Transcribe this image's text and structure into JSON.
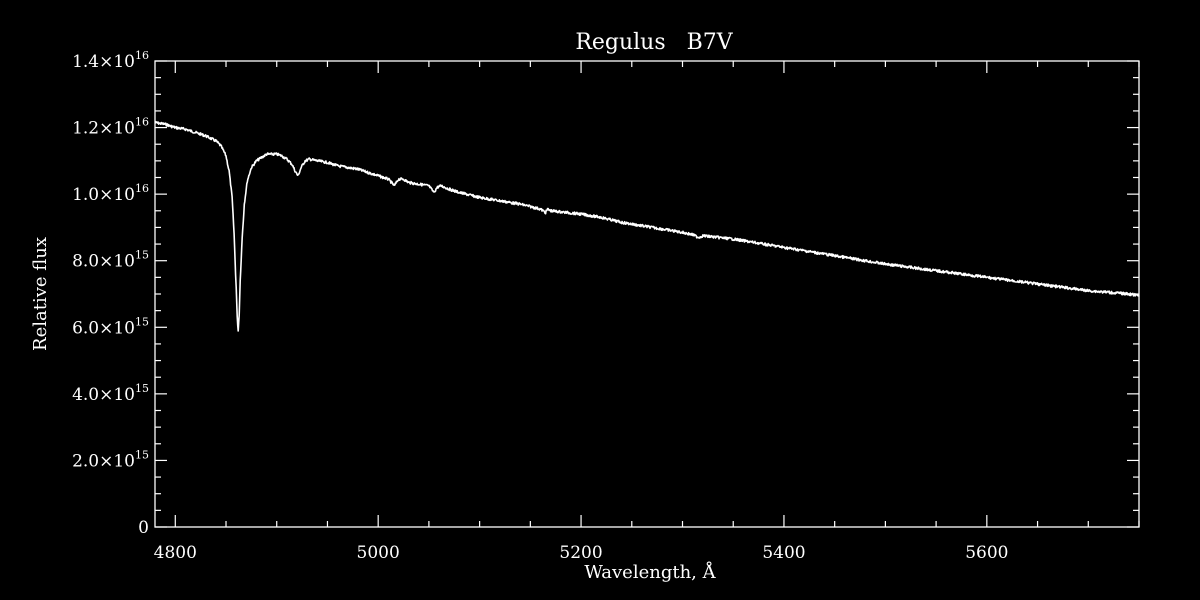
{
  "chart_data": {
    "type": "line",
    "title": "Regulus   B7V",
    "xlabel": "Wavelength, Å",
    "ylabel": "Relative flux",
    "xlim": [
      4780,
      5750
    ],
    "ylim": [
      0,
      1.4e+16
    ],
    "grid": false,
    "colors": {
      "background": "#000000",
      "foreground": "#ffffff"
    },
    "x_ticks": [
      {
        "value": 4800,
        "label": "4800"
      },
      {
        "value": 5000,
        "label": "5000"
      },
      {
        "value": 5200,
        "label": "5200"
      },
      {
        "value": 5400,
        "label": "5400"
      },
      {
        "value": 5600,
        "label": "5600"
      }
    ],
    "y_ticks": [
      {
        "value": 0,
        "mantissa": "0",
        "exp": ""
      },
      {
        "value": 2000000000000000.0,
        "mantissa": "2.0×10",
        "exp": "15"
      },
      {
        "value": 4000000000000000.0,
        "mantissa": "4.0×10",
        "exp": "15"
      },
      {
        "value": 6000000000000000.0,
        "mantissa": "6.0×10",
        "exp": "15"
      },
      {
        "value": 8000000000000000.0,
        "mantissa": "8.0×10",
        "exp": "15"
      },
      {
        "value": 1e+16,
        "mantissa": "1.0×10",
        "exp": "16"
      },
      {
        "value": 1.2e+16,
        "mantissa": "1.2×10",
        "exp": "16"
      },
      {
        "value": 1.4e+16,
        "mantissa": "1.4×10",
        "exp": "16"
      }
    ],
    "series": [
      {
        "x": [
          4780,
          4790,
          4800,
          4810,
          4820,
          4830,
          4840,
          4845,
          4850,
          4853,
          4856,
          4858,
          4860,
          4861,
          4862,
          4863,
          4864,
          4866,
          4868,
          4871,
          4875,
          4880,
          4885,
          4890,
          4895,
          4900,
          4905,
          4910,
          4915,
          4918,
          4921,
          4924,
          4928,
          4932,
          4940,
          4950,
          4960,
          4970,
          4980,
          4990,
          5000,
          5010,
          5016,
          5020,
          5025,
          5030,
          5040,
          5050,
          5055,
          5058,
          5062,
          5070,
          5080,
          5100,
          5120,
          5140,
          5160,
          5165,
          5167,
          5170,
          5200,
          5220,
          5240,
          5260,
          5280,
          5300,
          5310,
          5316,
          5320,
          5350,
          5400,
          5450,
          5500,
          5550,
          5600,
          5650,
          5700,
          5740,
          5750
        ],
        "y": [
          1.215e+16,
          1.21e+16,
          1.2e+16,
          1.195e+16,
          1.185e+16,
          1.175e+16,
          1.16e+16,
          1.145e+16,
          1.115e+16,
          1.07e+16,
          9900000000000000.0,
          8800000000000000.0,
          7200000000000000.0,
          6300000000000000.0,
          5900000000000000.0,
          6400000000000000.0,
          7400000000000000.0,
          8700000000000000.0,
          9700000000000000.0,
          1.04e+16,
          1.08e+16,
          1.1e+16,
          1.11e+16,
          1.12e+16,
          1.12e+16,
          1.12e+16,
          1.115e+16,
          1.105e+16,
          1.09e+16,
          1.07e+16,
          1.055e+16,
          1.08e+16,
          1.1e+16,
          1.105e+16,
          1.1e+16,
          1.095e+16,
          1.085e+16,
          1.08e+16,
          1.075e+16,
          1.065e+16,
          1.055e+16,
          1.045e+16,
          1.025e+16,
          1.045e+16,
          1.045e+16,
          1.035e+16,
          1.03e+16,
          1.025e+16,
          1.005e+16,
          1.02e+16,
          1.025e+16,
          1.015e+16,
          1.005e+16,
          9900000000000000.0,
          9800000000000000.0,
          9700000000000000.0,
          9550000000000000.0,
          9450000000000000.0,
          9550000000000000.0,
          9500000000000000.0,
          9400000000000000.0,
          9300000000000000.0,
          9150000000000000.0,
          9050000000000000.0,
          8950000000000000.0,
          8850000000000000.0,
          8780000000000000.0,
          8700000000000000.0,
          8750000000000000.0,
          8650000000000000.0,
          8400000000000000.0,
          8150000000000000.0,
          7900000000000000.0,
          7700000000000000.0,
          7500000000000000.0,
          7300000000000000.0,
          7100000000000000.0,
          7000000000000000.0,
          6950000000000000.0
        ]
      }
    ]
  }
}
